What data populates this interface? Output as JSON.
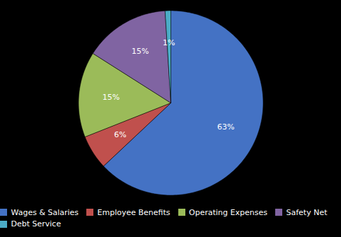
{
  "chart_data": {
    "type": "pie",
    "categories": [
      "Wages & Salaries",
      "Employee Benefits",
      "Operating Expenses",
      "Safety Net",
      "Debt Service"
    ],
    "values": [
      63,
      6,
      15,
      15,
      1
    ],
    "value_labels": [
      "63%",
      "6%",
      "15%",
      "15%",
      "1%"
    ],
    "colors": [
      "#4472C4",
      "#C0504D",
      "#9BBB59",
      "#8064A2",
      "#4BACC6"
    ],
    "data_labels": true,
    "legend": "bottom"
  }
}
